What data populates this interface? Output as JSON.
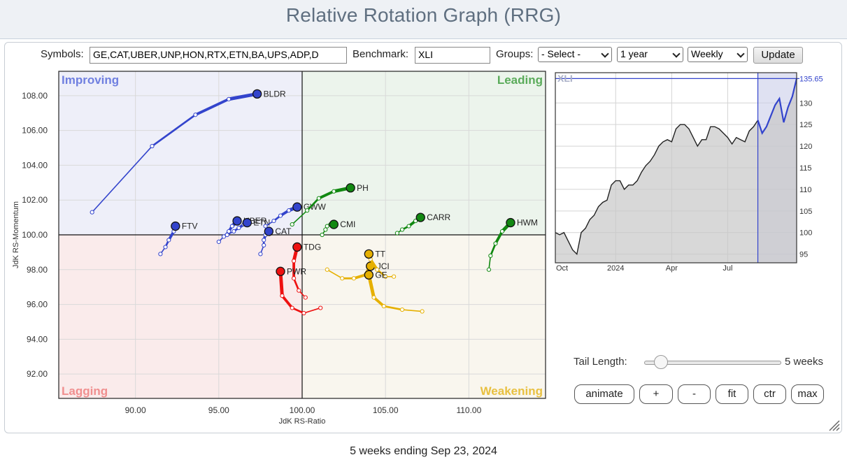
{
  "page": {
    "title": "Relative Rotation Graph (RRG)",
    "footer": "5 weeks ending Sep 23, 2024"
  },
  "controls": {
    "symbols_label": "Symbols:",
    "symbols_value": "GE,CAT,UBER,UNP,HON,RTX,ETN,BA,UPS,ADP,D",
    "benchmark_label": "Benchmark:",
    "benchmark_value": "XLI",
    "groups_label": "Groups:",
    "groups_value": "- Select -",
    "period_value": "1 year",
    "interval_value": "Weekly",
    "update_label": "Update"
  },
  "tail": {
    "label": "Tail Length:",
    "value": "5 weeks",
    "weeks": 5
  },
  "buttons": {
    "animate": "animate",
    "plus": "+",
    "minus": "-",
    "fit": "fit",
    "ctr": "ctr",
    "max": "max"
  },
  "chart_data": [
    {
      "type": "scatter",
      "title": "Relative Rotation Graph",
      "xlabel": "JdK RS-Ratio",
      "ylabel": "JdK RS-Momentum",
      "xlim": [
        85.4,
        114.6
      ],
      "ylim": [
        90.6,
        109.4
      ],
      "x_ticks": [
        90,
        95,
        100,
        105,
        110
      ],
      "x_tick_labels": [
        "90.00",
        "95.00",
        "100.00",
        "105.00",
        "110.00"
      ],
      "y_ticks": [
        92,
        94,
        96,
        98,
        100,
        102,
        104,
        106,
        108
      ],
      "y_tick_labels": [
        "92.00",
        "94.00",
        "96.00",
        "98.00",
        "100.00",
        "102.00",
        "104.00",
        "106.00",
        "108.00"
      ],
      "grid": true,
      "quadrants": [
        {
          "name": "Improving",
          "position": "top-left",
          "color": "#6f7fe0",
          "fill": "#eeeff9"
        },
        {
          "name": "Leading",
          "position": "top-right",
          "color": "#5aab5a",
          "fill": "#ecf4ec"
        },
        {
          "name": "Lagging",
          "position": "bottom-left",
          "color": "#f08f8f",
          "fill": "#faebeb"
        },
        {
          "name": "Weakening",
          "position": "bottom-right",
          "color": "#e8c040",
          "fill": "#f9f6ee"
        }
      ],
      "series": [
        {
          "name": "BLDR",
          "color": "#3344cc",
          "x": [
            87.4,
            91.0,
            93.6,
            95.6,
            97.3
          ],
          "y": [
            101.3,
            105.1,
            106.9,
            107.8,
            108.1
          ]
        },
        {
          "name": "FTV",
          "color": "#3344cc",
          "x": [
            91.5,
            91.8,
            92.0,
            92.3,
            92.4
          ],
          "y": [
            98.9,
            99.3,
            99.7,
            100.2,
            100.5
          ]
        },
        {
          "name": "UBER",
          "color": "#3344cc",
          "x": [
            95.0,
            95.3,
            95.6,
            95.8,
            96.1
          ],
          "y": [
            99.6,
            99.9,
            100.2,
            100.5,
            100.8
          ]
        },
        {
          "name": "ETN",
          "color": "#3344cc",
          "x": [
            95.5,
            95.9,
            96.2,
            96.5,
            96.7
          ],
          "y": [
            100.0,
            100.2,
            100.4,
            100.6,
            100.7
          ]
        },
        {
          "name": "CAT",
          "color": "#3344cc",
          "x": [
            97.5,
            97.7,
            97.7,
            97.8,
            98.0
          ],
          "y": [
            98.9,
            99.4,
            99.7,
            100.0,
            100.2
          ]
        },
        {
          "name": "GWW",
          "color": "#3344cc",
          "x": [
            97.8,
            98.3,
            98.7,
            99.2,
            99.7
          ],
          "y": [
            100.5,
            100.8,
            101.1,
            101.4,
            101.6
          ]
        },
        {
          "name": "PH",
          "color": "#118811",
          "x": [
            99.4,
            100.3,
            101.0,
            101.9,
            102.9
          ],
          "y": [
            100.6,
            101.4,
            102.1,
            102.5,
            102.7
          ]
        },
        {
          "name": "CMI",
          "color": "#118811",
          "x": [
            101.2,
            101.4,
            101.5,
            101.7,
            101.9
          ],
          "y": [
            100.0,
            100.3,
            100.5,
            100.6,
            100.6
          ]
        },
        {
          "name": "CARR",
          "color": "#118811",
          "x": [
            105.7,
            106.0,
            106.4,
            106.8,
            107.1
          ],
          "y": [
            100.1,
            100.3,
            100.5,
            100.8,
            101.0
          ]
        },
        {
          "name": "HWM",
          "color": "#118811",
          "x": [
            111.2,
            111.3,
            111.6,
            112.0,
            112.5
          ],
          "y": [
            98.0,
            98.8,
            99.5,
            100.2,
            100.7
          ]
        },
        {
          "name": "TDG",
          "color": "#ee1111",
          "x": [
            100.2,
            99.8,
            99.5,
            99.5,
            99.7
          ],
          "y": [
            96.4,
            96.8,
            97.5,
            98.5,
            99.3
          ]
        },
        {
          "name": "PWR",
          "color": "#ee1111",
          "x": [
            101.1,
            100.1,
            99.4,
            98.8,
            98.7
          ],
          "y": [
            95.8,
            95.5,
            95.8,
            96.5,
            97.9
          ]
        },
        {
          "name": "JCI",
          "color": "#e6b000",
          "x": [
            101.5,
            102.4,
            103.1,
            103.8,
            104.1
          ],
          "y": [
            98.0,
            97.5,
            97.5,
            97.7,
            98.2
          ]
        },
        {
          "name": "TT",
          "color": "#e6b000",
          "x": [
            105.5,
            105.0,
            104.5,
            104.1,
            104.0
          ],
          "y": [
            97.6,
            97.6,
            98.0,
            98.6,
            98.9
          ]
        },
        {
          "name": "GE",
          "color": "#e6b000",
          "x": [
            107.2,
            106.0,
            104.9,
            104.3,
            104.0
          ],
          "y": [
            95.6,
            95.7,
            95.9,
            96.4,
            97.7
          ]
        }
      ]
    },
    {
      "type": "area",
      "title": "XLI",
      "x_tick_labels": [
        "Oct",
        "2024",
        "Apr",
        "Jul"
      ],
      "y_ticks": [
        95,
        100,
        105,
        110,
        115,
        120,
        125,
        130
      ],
      "y_tick_labels": [
        "95",
        "100",
        "105",
        "110",
        "115",
        "120",
        "125",
        "130"
      ],
      "ylim": [
        93,
        137
      ],
      "last_value": 135.65,
      "last_value_label": "135.65",
      "highlight_start_index": 47,
      "values": [
        100,
        99.5,
        100,
        98,
        96,
        95,
        100,
        101,
        103,
        104,
        106,
        107,
        107.5,
        111,
        112,
        112,
        110,
        111,
        111,
        112,
        114,
        115.5,
        116.5,
        118,
        120,
        121,
        121.5,
        121,
        124,
        125,
        125,
        124,
        122,
        120,
        121.5,
        121.5,
        124.5,
        124.5,
        124,
        123,
        122,
        120.5,
        122,
        121.5,
        121,
        123.5,
        124.5,
        126,
        123,
        124.5,
        127,
        129.5,
        131,
        125.5,
        129,
        131.5,
        135.65
      ]
    }
  ]
}
